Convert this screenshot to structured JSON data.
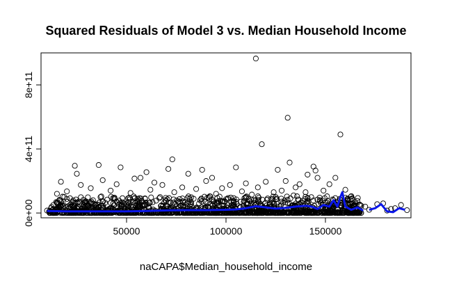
{
  "chart_data": {
    "type": "scatter",
    "title": "Squared Residuals of Model 3 vs. Median Household Income",
    "xlabel": "naCAPA$Median_household_income",
    "ylabel": "",
    "xlim": [
      7000,
      193000
    ],
    "ylim": [
      -30000000000.0,
      1000000000000.0
    ],
    "x_ticks": [
      {
        "value": 50000,
        "label": "50000"
      },
      {
        "value": 100000,
        "label": "100000"
      },
      {
        "value": 150000,
        "label": "150000"
      }
    ],
    "y_ticks": [
      {
        "value": 0,
        "label": "0e+00"
      },
      {
        "value": 400000000000,
        "label": "4e+11"
      },
      {
        "value": 800000000000,
        "label": "8e+11"
      }
    ],
    "grid": false,
    "legend": "none",
    "point_color": "#000000",
    "smooth_color": "#0a16e8",
    "outliers": [
      [
        115000,
        965000000000.0
      ],
      [
        131000,
        595000000000.0
      ],
      [
        157500,
        490000000000.0
      ],
      [
        118000,
        430000000000.0
      ],
      [
        132000,
        315000000000.0
      ],
      [
        73000,
        335000000000.0
      ],
      [
        24000,
        295000000000.0
      ],
      [
        36000,
        300000000000.0
      ],
      [
        47000,
        285000000000.0
      ],
      [
        105000,
        285000000000.0
      ],
      [
        144000,
        290000000000.0
      ],
      [
        155000,
        220000000000.0
      ],
      [
        145000,
        265000000000.0
      ],
      [
        88000,
        270000000000.0
      ],
      [
        60000,
        255000000000.0
      ],
      [
        126000,
        270000000000.0
      ],
      [
        71000,
        275000000000.0
      ],
      [
        81000,
        245000000000.0
      ],
      [
        25000,
        245000000000.0
      ],
      [
        141000,
        240000000000.0
      ],
      [
        57000,
        220000000000.0
      ],
      [
        17000,
        195000000000.0
      ],
      [
        54000,
        215000000000.0
      ],
      [
        93000,
        220000000000.0
      ],
      [
        38000,
        205000000000.0
      ],
      [
        90000,
        200000000000.0
      ],
      [
        130000,
        200000000000.0
      ],
      [
        146000,
        220000000000.0
      ],
      [
        64000,
        190000000000.0
      ],
      [
        110000,
        185000000000.0
      ],
      [
        120000,
        195000000000.0
      ],
      [
        27000,
        175000000000.0
      ],
      [
        45000,
        180000000000.0
      ],
      [
        68000,
        175000000000.0
      ],
      [
        135000,
        160000000000.0
      ],
      [
        137000,
        180000000000.0
      ],
      [
        152000,
        180000000000.0
      ],
      [
        102000,
        175000000000.0
      ],
      [
        32000,
        155000000000.0
      ],
      [
        78000,
        160000000000.0
      ],
      [
        85000,
        150000000000.0
      ],
      [
        98000,
        155000000000.0
      ],
      [
        116000,
        160000000000.0
      ],
      [
        128000,
        140000000000.0
      ],
      [
        140000,
        130000000000.0
      ],
      [
        160000,
        145000000000.0
      ],
      [
        149000,
        140000000000.0
      ],
      [
        20000,
        135000000000.0
      ],
      [
        42000,
        140000000000.0
      ],
      [
        62000,
        145000000000.0
      ],
      [
        74000,
        130000000000.0
      ],
      [
        108000,
        135000000000.0
      ],
      [
        124000,
        130000000000.0
      ],
      [
        15000,
        120000000000.0
      ],
      [
        52000,
        125000000000.0
      ],
      [
        95000,
        120000000000.0
      ],
      [
        113000,
        115000000000.0
      ],
      [
        134000,
        110000000000.0
      ],
      [
        163000,
        105000000000.0
      ],
      [
        188000,
        50000000000.0
      ],
      [
        176000,
        55000000000.0
      ],
      [
        168000,
        45000000000.0
      ],
      [
        185000,
        30000000000.0
      ],
      [
        191000,
        18000000000.0
      ],
      [
        172000,
        20000000000.0
      ],
      [
        181000,
        15000000000.0
      ],
      [
        10000,
        15000000000.0
      ],
      [
        12000,
        30000000000.0
      ],
      [
        179000,
        60000000000.0
      ],
      [
        166000,
        75000000000.0
      ],
      [
        170000,
        40000000000.0
      ],
      [
        183000,
        25000000000.0
      ]
    ],
    "dense_band": {
      "x_range": [
        11000,
        168000
      ],
      "max_residual": 105000000000.0,
      "n_points": 1400
    },
    "smooth_line": {
      "x": [
        10000,
        20000,
        30000,
        40000,
        50000,
        60000,
        70000,
        80000,
        90000,
        100000,
        105000,
        110000,
        115000,
        120000,
        125000,
        130000,
        135000,
        140000,
        143000,
        146000,
        149000,
        152000,
        154000,
        156000,
        157500,
        158500,
        160000,
        163000,
        166000,
        169000,
        172000,
        175000,
        178000,
        181000,
        184000,
        187000,
        190000
      ],
      "y": [
        12000000000.0,
        10000000000.0,
        10000000000.0,
        10000000000.0,
        10000000000.0,
        12000000000.0,
        16000000000.0,
        18000000000.0,
        18000000000.0,
        20000000000.0,
        22000000000.0,
        30000000000.0,
        42000000000.0,
        35000000000.0,
        28000000000.0,
        32000000000.0,
        40000000000.0,
        45000000000.0,
        40000000000.0,
        25000000000.0,
        50000000000.0,
        40000000000.0,
        80000000000.0,
        40000000000.0,
        100000000000.0,
        130000000000.0,
        40000000000.0,
        20000000000.0,
        35000000000.0,
        15000000000.0,
        20000000000.0,
        30000000000.0,
        55000000000.0,
        10000000000.0,
        5000000000.0,
        30000000000.0,
        20000000000.0
      ],
      "gap_after_x": 169000
    }
  }
}
